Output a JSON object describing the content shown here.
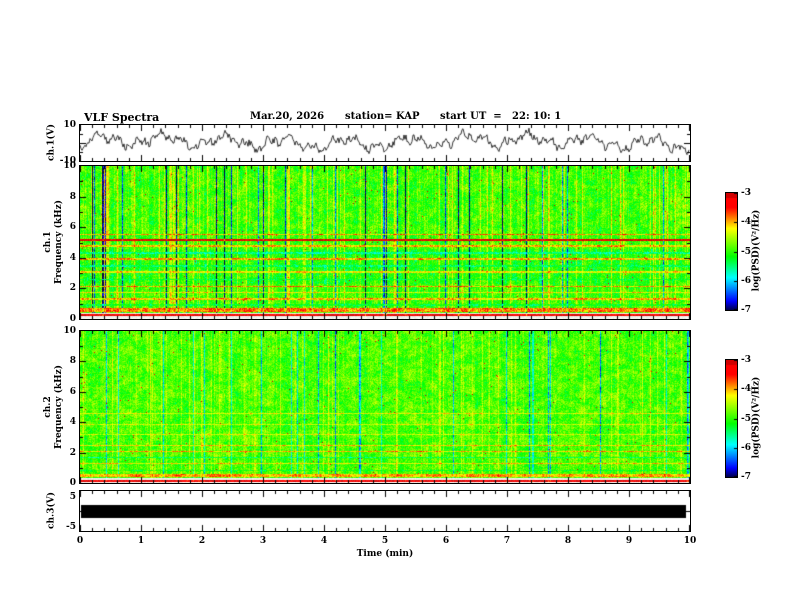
{
  "header": {
    "title": "VLF Spectra",
    "date": "Mar.20, 2026",
    "station": "station= KAP",
    "start_ut": "start UT  =   22: 10: 1"
  },
  "xaxis": {
    "label": "Time (min)",
    "min": 0,
    "max": 10,
    "ticks": [
      "0",
      "1",
      "2",
      "3",
      "4",
      "5",
      "6",
      "7",
      "8",
      "9",
      "10"
    ]
  },
  "wave1": {
    "ylabel": "ch.1(V)",
    "ytick_top": "10",
    "ytick_bottom": "-10"
  },
  "spec1": {
    "ylabel_line1": "ch.1",
    "ylabel_line2": "Frequency (kHz)",
    "yticks": [
      "10",
      "8",
      "6",
      "4",
      "2",
      "0"
    ]
  },
  "spec2": {
    "ylabel_line1": "ch.2",
    "ylabel_line2": "Frequency (kHz)",
    "yticks": [
      "10",
      "8",
      "6",
      "4",
      "2",
      "0"
    ]
  },
  "ch3": {
    "ylabel": "ch.3(V)",
    "ytick_top": "5",
    "ytick_bottom": "-5"
  },
  "colorbar": {
    "label": "log(PSD)(V²/Hz)",
    "ticks": [
      "-3",
      "-4",
      "-5",
      "-6",
      "-7"
    ]
  },
  "chart_data": [
    {
      "panel": "ch1-waveform",
      "type": "line",
      "xlabel": "Time (min)",
      "xlim": [
        0,
        10
      ],
      "ylabel": "ch.1(V)",
      "ylim": [
        -10,
        10
      ],
      "seed": 97,
      "summary": "continuous noisy broadband voltage trace, mean near +0.5 V, excursions roughly -6 to +7 V over the 10 minute record"
    },
    {
      "panel": "ch1-spectrogram",
      "type": "heatmap",
      "xlabel": "Time (min)",
      "xlim": [
        0,
        10
      ],
      "ylabel": "Frequency (kHz)",
      "ylim": [
        0,
        10
      ],
      "colorbar_label": "log(PSD)(V²/Hz)",
      "zlim": [
        -7,
        -3
      ],
      "seed": 11,
      "base": 0.52,
      "noise": 0.16,
      "blotch": 0.13,
      "stripes": 1.0,
      "bands": [
        {
          "f0": 0.0,
          "f1": 0.45,
          "style": "white"
        },
        {
          "f0": 2.3,
          "f1": 4.6,
          "intensity": 0.48
        }
      ],
      "lines": [
        {
          "f": 5.55,
          "intensity": 0.78,
          "width": 0.05
        },
        {
          "f": 5.2,
          "intensity": 0.96,
          "width": 0.08
        },
        {
          "f": 4.8,
          "intensity": 0.74,
          "width": 0.05
        },
        {
          "f": 4.35,
          "intensity": 0.36,
          "width": 0.05
        },
        {
          "f": 3.95,
          "intensity": 0.75,
          "width": 0.05
        },
        {
          "f": 3.5,
          "intensity": 0.4,
          "width": 0.05
        },
        {
          "f": 3.1,
          "intensity": 0.7,
          "width": 0.04
        },
        {
          "f": 2.6,
          "intensity": 0.42,
          "width": 0.04
        },
        {
          "f": 2.15,
          "intensity": 0.78,
          "width": 0.05
        },
        {
          "f": 1.75,
          "intensity": 0.7,
          "width": 0.04
        },
        {
          "f": 1.35,
          "intensity": 0.75,
          "width": 0.05
        },
        {
          "f": 0.95,
          "intensity": 0.45,
          "width": 0.04
        },
        {
          "f": 0.62,
          "intensity": 0.8,
          "width": 0.1
        },
        {
          "f": 0.3,
          "intensity": 0.95,
          "width": 0.06
        }
      ],
      "summary": "green/cyan broadband noise with bright yellow-red horizontal spectral lines below ~5.6 kHz, strong red line near 5.2 kHz, dense vertical striping, white quiet band below ~0.45 kHz with a red line at ~0.3 kHz"
    },
    {
      "panel": "ch2-spectrogram",
      "type": "heatmap",
      "xlabel": "Time (min)",
      "xlim": [
        0,
        10
      ],
      "ylabel": "Frequency (kHz)",
      "ylim": [
        0,
        10
      ],
      "colorbar_label": "log(PSD)(V²/Hz)",
      "zlim": [
        -7,
        -3
      ],
      "seed": 23,
      "base": 0.53,
      "noise": 0.15,
      "blotch": 0.13,
      "stripes": 0.65,
      "bands": [
        {
          "f0": 0.0,
          "f1": 0.35,
          "style": "white"
        }
      ],
      "lines": [
        {
          "f": 4.6,
          "intensity": 0.68,
          "width": 0.04
        },
        {
          "f": 3.9,
          "intensity": 0.66,
          "width": 0.04
        },
        {
          "f": 3.2,
          "intensity": 0.66,
          "width": 0.04
        },
        {
          "f": 2.5,
          "intensity": 0.72,
          "width": 0.05
        },
        {
          "f": 2.1,
          "intensity": 0.75,
          "width": 0.05
        },
        {
          "f": 1.7,
          "intensity": 0.4,
          "width": 0.05
        },
        {
          "f": 1.3,
          "intensity": 0.72,
          "width": 0.05
        },
        {
          "f": 0.85,
          "intensity": 0.45,
          "width": 0.04
        },
        {
          "f": 0.5,
          "intensity": 0.76,
          "width": 0.1
        },
        {
          "f": 0.15,
          "intensity": 0.95,
          "width": 0.07
        }
      ],
      "summary": "smoother green/cyan noise field than ch.1, fainter horizontal banding in the lower 5 kHz, white quiet band below ~0.35 kHz with a red line just above 0 kHz"
    },
    {
      "panel": "ch3-waveform",
      "type": "line",
      "xlabel": "Time (min)",
      "xlim": [
        0,
        10
      ],
      "ylabel": "ch.3(V)",
      "ylim": [
        -5,
        5
      ],
      "bar": {
        "v_top": 1.6,
        "v_bottom": -1.6
      },
      "summary": "fully saturated/clipped signal rendered as a solid black band spanning the entire record, roughly -1.6 to +1.6 V"
    }
  ]
}
